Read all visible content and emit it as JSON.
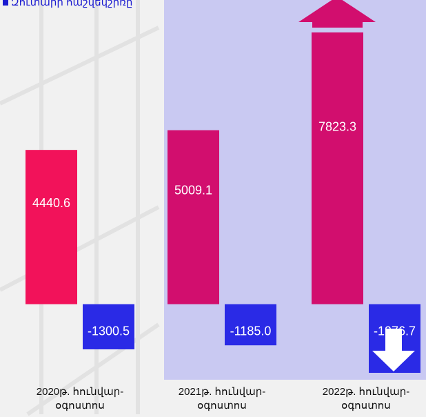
{
  "chart_data": {
    "type": "bar",
    "title": "Զուտարի հաշվեկշիռը",
    "categories": [
      "2020թ. հունվար-օգոստոս",
      "2021թ. հունվար-օգոստոս",
      "2022թ. հունվար-օգոստոս"
    ],
    "series": [
      {
        "colors": [
          "#f2125a",
          "#d20e6e",
          "#d20e6e"
        ],
        "values": [
          4440.6,
          5009.1,
          7823.3
        ]
      },
      {
        "colors": [
          "#2a2ae6",
          "#2a2ae6",
          "#2a2ae6"
        ],
        "values": [
          -1300.5,
          -1185.0,
          -1976.7
        ],
        "value_labels": [
          "-1300.5",
          "-1185.0",
          "-1976.7"
        ]
      }
    ]
  }
}
